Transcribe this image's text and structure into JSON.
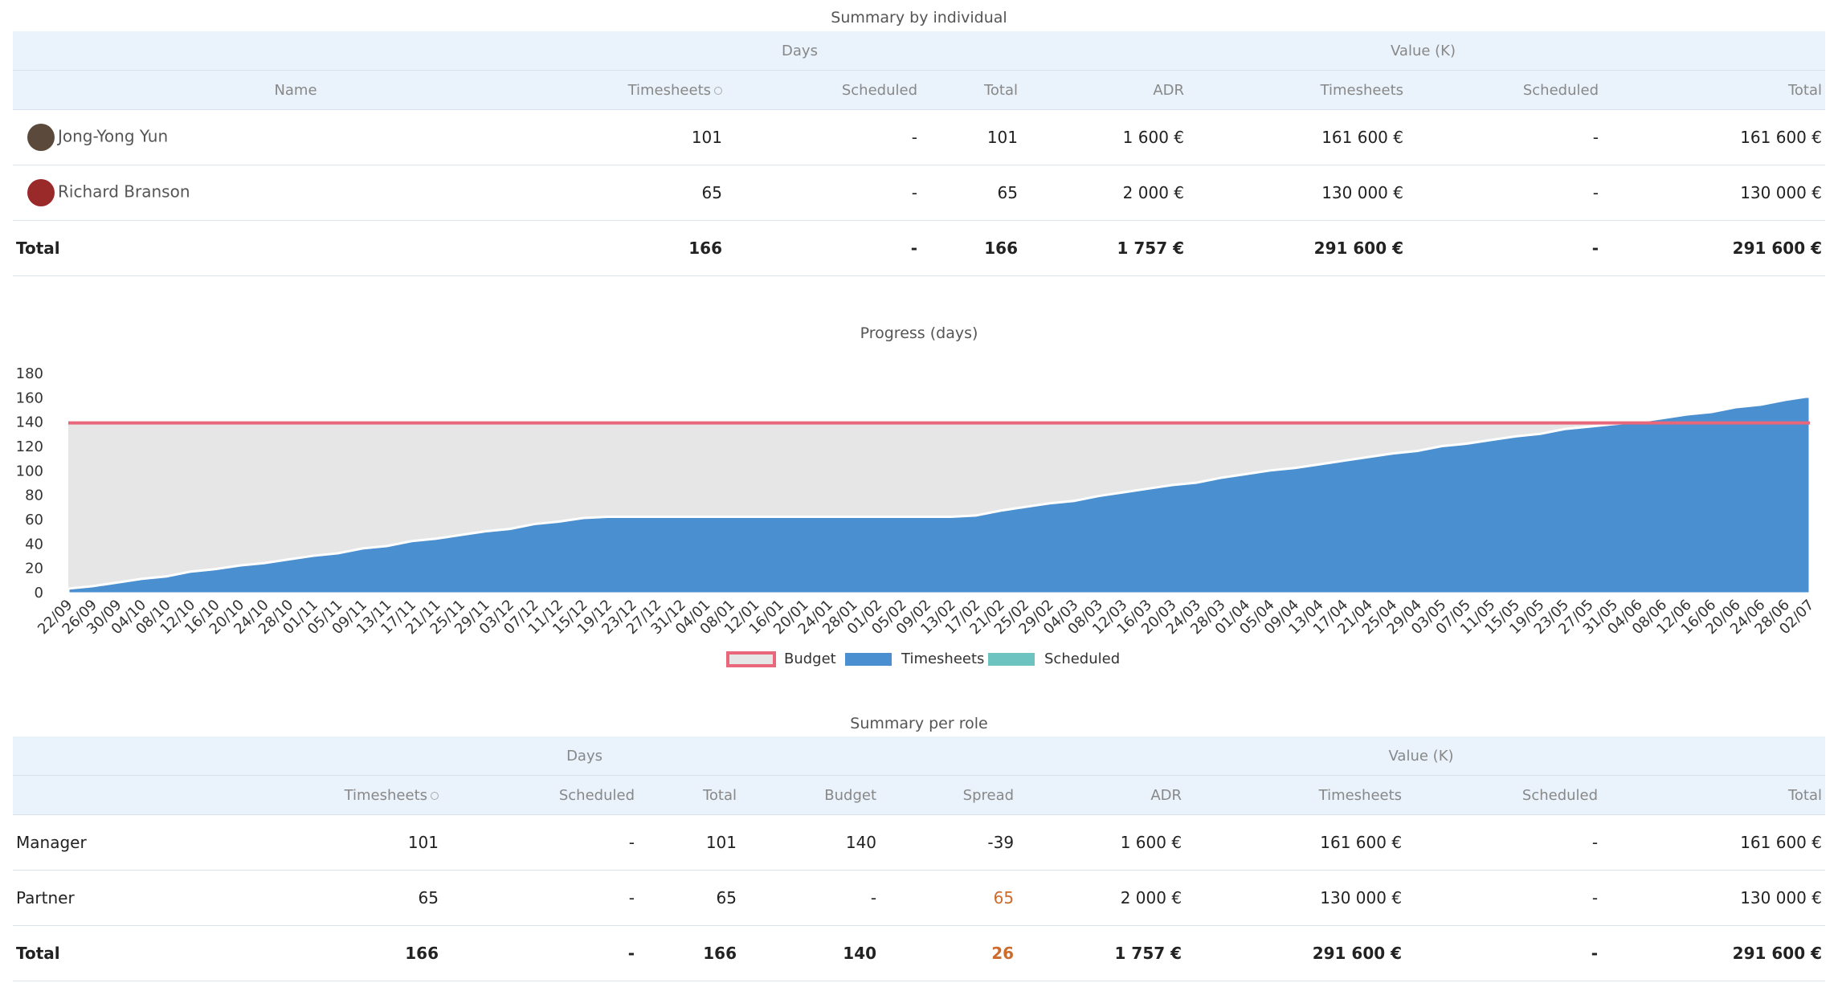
{
  "table1": {
    "title": "Summary by individual",
    "group_headers": [
      "Days",
      "Value (K)"
    ],
    "columns": [
      "Name",
      "Timesheets",
      "Scheduled",
      "Total",
      "ADR",
      "Timesheets",
      "Scheduled",
      "Total"
    ],
    "rows": [
      [
        "Jong-Yong Yun",
        "101",
        "-",
        "101",
        "1 600 €",
        "161 600 €",
        "-",
        "161 600 €"
      ],
      [
        "Richard Branson",
        "65",
        "-",
        "65",
        "2 000 €",
        "130 000 €",
        "-",
        "130 000 €"
      ]
    ],
    "total": [
      "Total",
      "166",
      "-",
      "166",
      "1 757 €",
      "291 600 €",
      "-",
      "291 600 €"
    ]
  },
  "chart_data": {
    "type": "area",
    "title": "Progress (days)",
    "categories": [
      "22/09",
      "26/09",
      "30/09",
      "04/10",
      "08/10",
      "12/10",
      "16/10",
      "20/10",
      "24/10",
      "28/10",
      "01/11",
      "05/11",
      "09/11",
      "13/11",
      "17/11",
      "21/11",
      "25/11",
      "29/11",
      "03/12",
      "07/12",
      "11/12",
      "15/12",
      "19/12",
      "23/12",
      "27/12",
      "31/12",
      "04/01",
      "08/01",
      "12/01",
      "16/01",
      "20/01",
      "24/01",
      "28/01",
      "01/02",
      "05/02",
      "09/02",
      "13/02",
      "17/02",
      "21/02",
      "25/02",
      "29/02",
      "04/03",
      "08/03",
      "12/03",
      "16/03",
      "20/03",
      "24/03",
      "28/03",
      "01/04",
      "05/04",
      "09/04",
      "13/04",
      "17/04",
      "21/04",
      "25/04",
      "29/04",
      "03/05",
      "07/05",
      "11/05",
      "15/05",
      "19/05",
      "23/05",
      "27/05",
      "31/05",
      "04/06",
      "08/06",
      "12/06",
      "16/06",
      "20/06",
      "24/06",
      "28/06",
      "02/07"
    ],
    "series": [
      {
        "name": "Budget",
        "color": "#e8677a",
        "fill": "#e6e6e6",
        "values": [
          140,
          140,
          140,
          140,
          140,
          140,
          140,
          140,
          140,
          140,
          140,
          140,
          140,
          140,
          140,
          140,
          140,
          140,
          140,
          140,
          140,
          140,
          140,
          140,
          140,
          140,
          140,
          140,
          140,
          140,
          140,
          140,
          140,
          140,
          140,
          140,
          140,
          140,
          140,
          140,
          140,
          140,
          140,
          140,
          140,
          140,
          140,
          140,
          140,
          140,
          140,
          140,
          140,
          140,
          140,
          140,
          140,
          140,
          140,
          140,
          140,
          140,
          140,
          140,
          140,
          140,
          140,
          140,
          140,
          140,
          140,
          140
        ]
      },
      {
        "name": "Timesheets",
        "color": "#4a8fd0",
        "values": [
          4,
          6,
          9,
          12,
          14,
          18,
          20,
          23,
          25,
          28,
          31,
          33,
          37,
          39,
          43,
          45,
          48,
          51,
          53,
          57,
          59,
          62,
          63,
          63,
          63,
          63,
          63,
          63,
          63,
          63,
          63,
          63,
          63,
          63,
          63,
          63,
          63,
          64,
          68,
          71,
          74,
          76,
          80,
          83,
          86,
          89,
          91,
          95,
          98,
          101,
          103,
          106,
          109,
          112,
          115,
          117,
          121,
          123,
          126,
          129,
          131,
          135,
          137,
          139,
          141,
          144,
          147,
          149,
          153,
          155,
          159,
          162
        ]
      },
      {
        "name": "Scheduled",
        "color": "#6cc3c0",
        "values": [
          0,
          0,
          0,
          0,
          0,
          0,
          0,
          0,
          0,
          0,
          0,
          0,
          0,
          0,
          0,
          0,
          0,
          0,
          0,
          0,
          0,
          0,
          0,
          0,
          0,
          0,
          0,
          0,
          0,
          0,
          0,
          0,
          0,
          0,
          0,
          0,
          0,
          0,
          0,
          0,
          0,
          0,
          0,
          0,
          0,
          0,
          0,
          0,
          0,
          0,
          0,
          0,
          0,
          0,
          0,
          0,
          0,
          0,
          0,
          0,
          0,
          0,
          0,
          0,
          0,
          0,
          0,
          0,
          0,
          0,
          0,
          0
        ]
      }
    ],
    "ylim": [
      0,
      180
    ],
    "yticks": [
      0,
      20,
      40,
      60,
      80,
      100,
      120,
      140,
      160,
      180
    ],
    "grid": false,
    "legend": "bottom"
  },
  "table2": {
    "title": "Summary per role",
    "group_headers": [
      "Days",
      "Value (K)"
    ],
    "columns": [
      "Timesheets",
      "Scheduled",
      "Total",
      "Budget",
      "Spread",
      "ADR",
      "Timesheets",
      "Scheduled",
      "Total"
    ],
    "rows": [
      [
        "Manager",
        "101",
        "-",
        "101",
        "140",
        "-39",
        "1 600 €",
        "161 600 €",
        "-",
        "161 600 €"
      ],
      [
        "Partner",
        "65",
        "-",
        "65",
        "-",
        "65",
        "2 000 €",
        "130 000 €",
        "-",
        "130 000 €"
      ]
    ],
    "total": [
      "Total",
      "166",
      "-",
      "166",
      "140",
      "26",
      "1 757 €",
      "291 600 €",
      "-",
      "291 600 €"
    ]
  }
}
